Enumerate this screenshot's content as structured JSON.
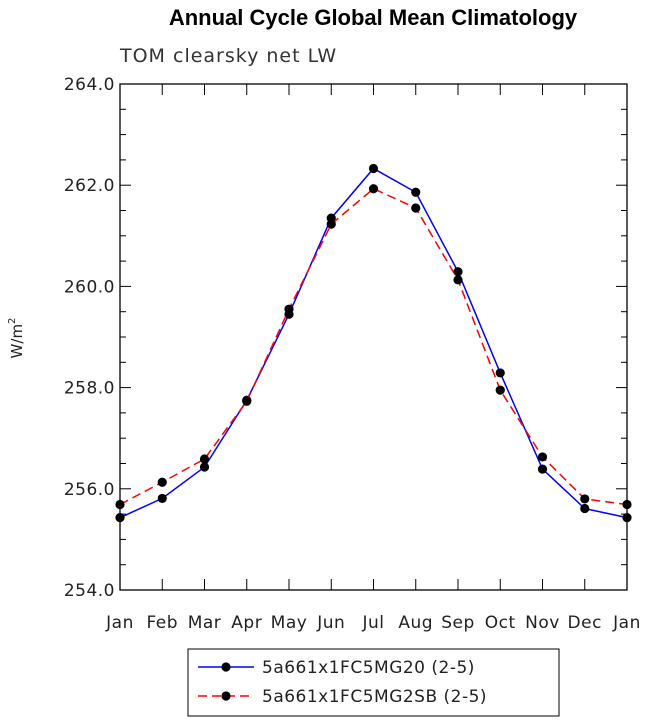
{
  "chart_data": {
    "type": "line",
    "title": "Annual Cycle Global Mean Climatology",
    "subtitle": "TOM clearsky net LW",
    "ylabel": "W/m",
    "ylabel_superscript": "2",
    "xlabel": "",
    "categories": [
      "Jan",
      "Feb",
      "Mar",
      "Apr",
      "May",
      "Jun",
      "Jul",
      "Aug",
      "Sep",
      "Oct",
      "Nov",
      "Dec",
      "Jan"
    ],
    "ylim": [
      254.0,
      264.0
    ],
    "yticks": [
      "254.0",
      "256.0",
      "258.0",
      "260.0",
      "262.0",
      "264.0"
    ],
    "grid": false,
    "legend_position": "bottom",
    "series": [
      {
        "name": "5a661x1FC5MG20 (2-5)",
        "color": "#0000ff",
        "dash": "solid",
        "values": [
          255.43,
          255.81,
          256.43,
          257.75,
          259.45,
          261.35,
          262.33,
          261.86,
          260.29,
          258.29,
          256.39,
          255.61,
          255.43
        ]
      },
      {
        "name": "5a661x1FC5MG2SB (2-5)",
        "color": "#ff0000",
        "dash": "dashed",
        "values": [
          255.69,
          256.13,
          256.59,
          257.73,
          259.55,
          261.23,
          261.93,
          261.55,
          260.13,
          257.95,
          256.63,
          255.8,
          255.69
        ]
      }
    ]
  }
}
